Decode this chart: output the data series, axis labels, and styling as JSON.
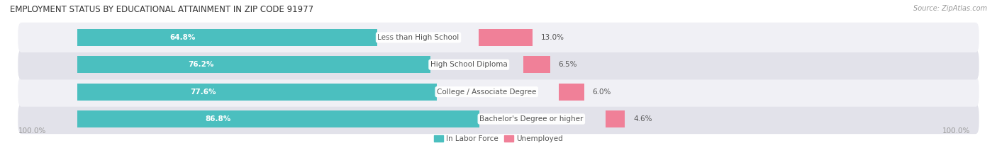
{
  "title": "EMPLOYMENT STATUS BY EDUCATIONAL ATTAINMENT IN ZIP CODE 91977",
  "source": "Source: ZipAtlas.com",
  "categories": [
    "Less than High School",
    "High School Diploma",
    "College / Associate Degree",
    "Bachelor's Degree or higher"
  ],
  "in_labor_force": [
    64.8,
    76.2,
    77.6,
    86.8
  ],
  "unemployed": [
    13.0,
    6.5,
    6.0,
    4.6
  ],
  "labor_color": "#4bbfbf",
  "unemployed_color": "#f08098",
  "row_bg_colors": [
    "#f0f0f5",
    "#e2e2ea"
  ],
  "label_color": "#555555",
  "title_color": "#333333",
  "axis_label_color": "#999999",
  "max_value": 100.0,
  "left_axis_label": "100.0%",
  "right_axis_label": "100.0%",
  "legend_labor": "In Labor Force",
  "legend_unemployed": "Unemployed"
}
